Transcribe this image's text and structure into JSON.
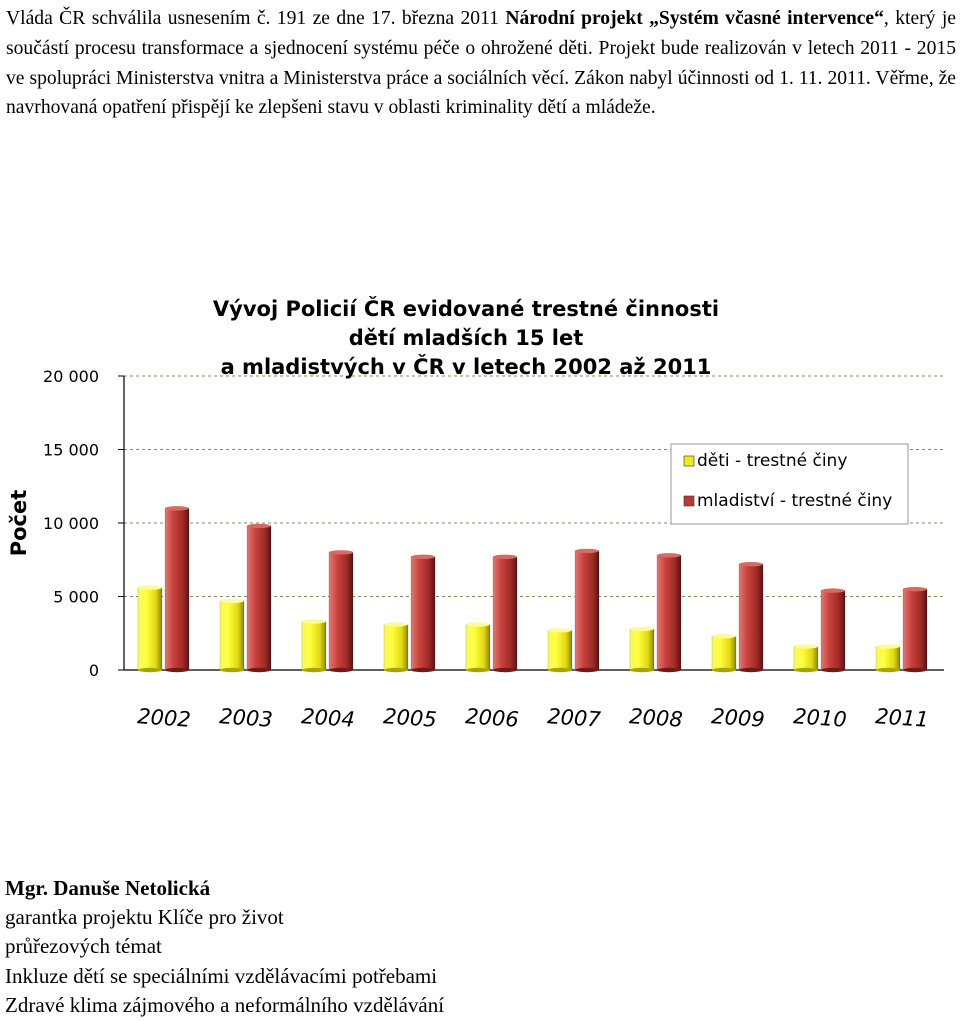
{
  "paragraph": {
    "p1": "Vláda ČR schválila usnesením č. 191 ze dne 17. března 2011 ",
    "p2_bold": "Národní projekt „Systém včasné intervence“",
    "p3": ", který je součástí procesu transformace a sjednocení systému péče o ohrožené děti. Projekt bude realizován v letech 2011 - 2015 ve spolupráci Ministerstva vnitra a Ministerstva práce a sociálních věcí. Zákon nabyl účinnosti od 1. 11. 2011. Věřme, že navrhovaná opatření přispějí ke zlepšeni stavu v oblasti kriminality dětí a mládeže."
  },
  "chart_data": {
    "type": "bar",
    "title_lines": [
      "Vývoj Policií ČR evidované trestné činnosti",
      "dětí mladších 15 let",
      "a mladistvých v ČR v letech 2002 až 2011"
    ],
    "ylabel": "Počet",
    "xlabel": "",
    "ylim": [
      0,
      20000
    ],
    "y_ticks": [
      0,
      5000,
      10000,
      15000,
      20000
    ],
    "y_tick_labels": [
      "0",
      "5 000",
      "10 000",
      "15 000",
      "20 000"
    ],
    "grid": true,
    "legend_position": "right",
    "categories": [
      "2002",
      "2003",
      "2004",
      "2005",
      "2006",
      "2007",
      "2008",
      "2009",
      "2010",
      "2011"
    ],
    "series": [
      {
        "name": "děti - trestné činy",
        "color": "#ecec1c",
        "values": [
          5600,
          4700,
          3300,
          3100,
          3100,
          2700,
          2800,
          2300,
          1600,
          1600
        ]
      },
      {
        "name": "mladiství - trestné činy",
        "color": "#b73a35",
        "values": [
          11000,
          9800,
          8000,
          7700,
          7700,
          8100,
          7800,
          7200,
          5400,
          5500
        ]
      }
    ]
  },
  "author": {
    "name": "Mgr. Danuše Netolická",
    "lines": [
      "garantka projektu Klíče pro život",
      "průřezových témat",
      "Inkluze dětí se speciálními vzdělávacími potřebami",
      "Zdravé klima zájmového a neformálního vzdělávání"
    ]
  }
}
